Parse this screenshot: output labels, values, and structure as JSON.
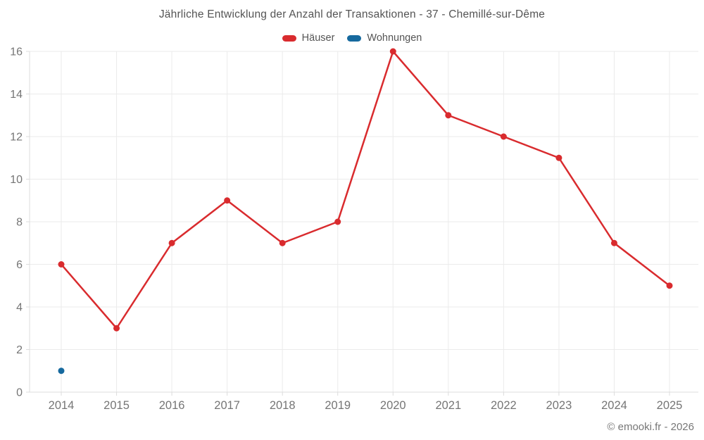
{
  "title": "Jährliche Entwicklung der Anzahl der Transaktionen - 37 - Chemillé-sur-Dême",
  "footer": "© emooki.fr - 2026",
  "colors": {
    "haeuser": "#d92b2e",
    "wohnungen": "#16699e",
    "grid": "#ebebeb",
    "axis": "#dcdcdc",
    "tick_label": "#757575",
    "title_text": "#545454"
  },
  "chart_data": {
    "type": "line",
    "title": "Jährliche Entwicklung der Anzahl der Transaktionen - 37 - Chemillé-sur-Dême",
    "x": [
      "2014",
      "2015",
      "2016",
      "2017",
      "2018",
      "2019",
      "2020",
      "2021",
      "2022",
      "2023",
      "2024",
      "2025"
    ],
    "series": [
      {
        "name": "Häuser",
        "color": "#d92b2e",
        "values": [
          6,
          3,
          7,
          9,
          7,
          8,
          16,
          13,
          12,
          11,
          7,
          5
        ]
      },
      {
        "name": "Wohnungen",
        "color": "#16699e",
        "values": [
          1,
          null,
          null,
          null,
          null,
          null,
          null,
          null,
          null,
          null,
          null,
          null
        ]
      }
    ],
    "xlabel": "",
    "ylabel": "",
    "ylim": [
      0,
      16
    ],
    "yticks": [
      0,
      2,
      4,
      6,
      8,
      10,
      12,
      14,
      16
    ],
    "grid": true,
    "legend_position": "top"
  }
}
